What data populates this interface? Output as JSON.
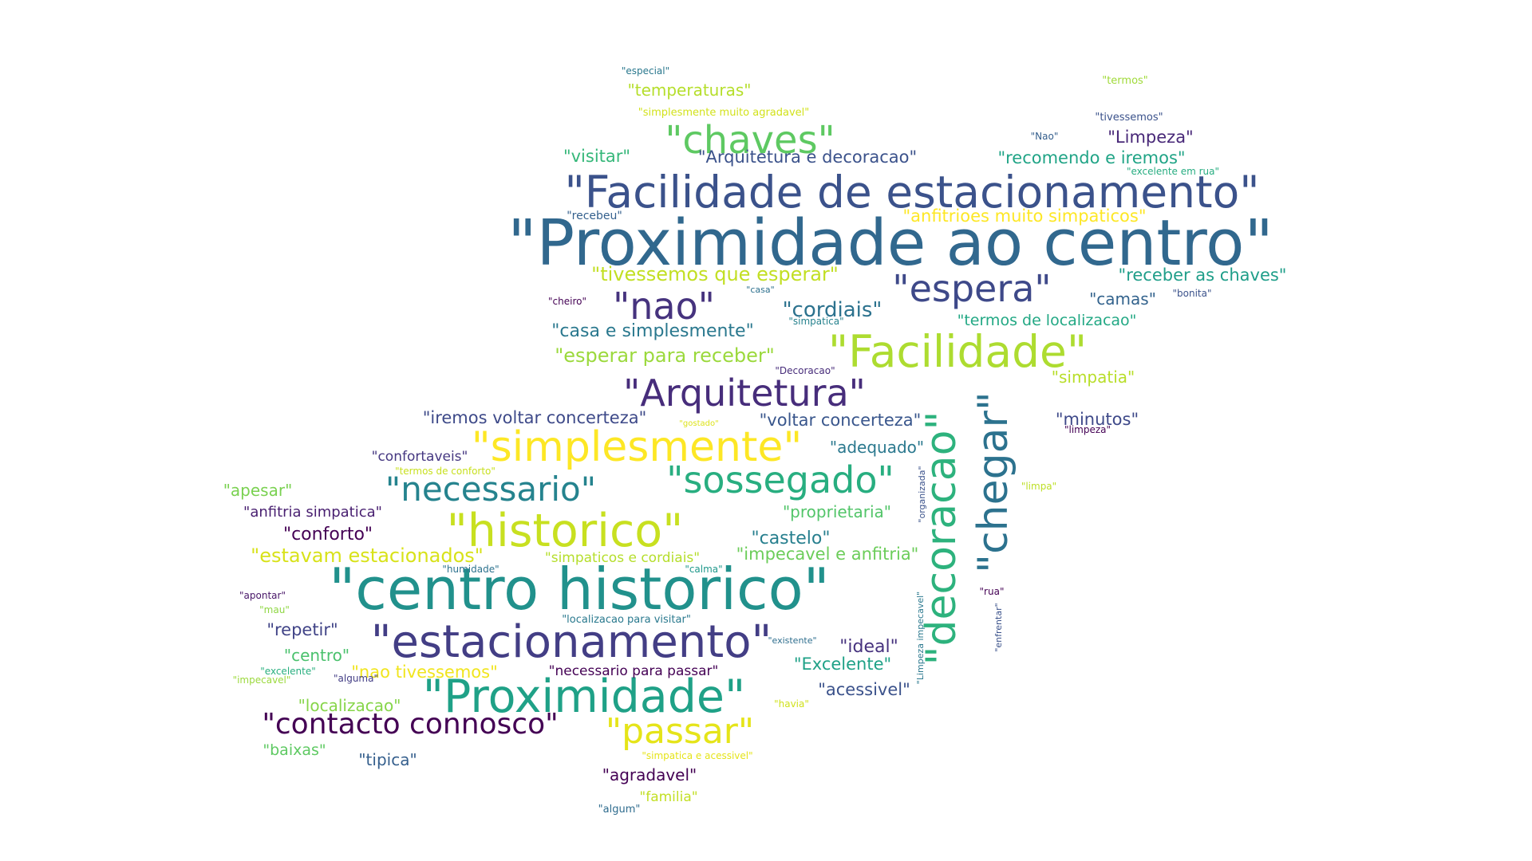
{
  "words": [
    {
      "text": "\"Proximidade ao centro\"",
      "color": "#31688e"
    },
    {
      "text": "\"centro historico\"",
      "color": "#21918c"
    },
    {
      "text": "\"Facilidade de estacionamento\"",
      "color": "#3b528b"
    },
    {
      "text": "\"historico\"",
      "color": "#c8e020"
    },
    {
      "text": "\"estacionamento\"",
      "color": "#433e85"
    },
    {
      "text": "\"Proximidade\"",
      "color": "#1fa187"
    },
    {
      "text": "\"Facilidade\"",
      "color": "#addc30"
    },
    {
      "text": "\"decoracao\"",
      "color": "#2db27d"
    },
    {
      "text": "\"chegar\"",
      "color": "#2c728e"
    },
    {
      "text": "\"simplesmente\"",
      "color": "#fde725"
    },
    {
      "text": "\"chaves\"",
      "color": "#5ec962"
    },
    {
      "text": "\"espera\"",
      "color": "#3e4989"
    },
    {
      "text": "\"sossegado\"",
      "color": "#28ae80"
    },
    {
      "text": "\"Arquitetura\"",
      "color": "#472d7b"
    },
    {
      "text": "\"nao\"",
      "color": "#46337e"
    },
    {
      "text": "\"necessario\"",
      "color": "#25838e"
    },
    {
      "text": "\"contacto connosco\"",
      "color": "#440154"
    },
    {
      "text": "\"passar\"",
      "color": "#e5e419"
    },
    {
      "text": "\"cordiais\"",
      "color": "#2c728e"
    },
    {
      "text": "\"temperaturas\"",
      "color": "#b5de2b"
    },
    {
      "text": "\"visitar\"",
      "color": "#35b779"
    },
    {
      "text": "\"Arquitetura e decoracao\"",
      "color": "#3b528b"
    },
    {
      "text": "\"recomendo e iremos\"",
      "color": "#20a486"
    },
    {
      "text": "\"Limpeza\"",
      "color": "#482878"
    },
    {
      "text": "\"anfitrioes muito simpaticos\"",
      "color": "#fde725"
    },
    {
      "text": "\"tivessemos que esperar\"",
      "color": "#c2df23"
    },
    {
      "text": "\"receber as chaves\"",
      "color": "#1f9e89"
    },
    {
      "text": "\"camas\"",
      "color": "#33638d"
    },
    {
      "text": "\"casa e simplesmente\"",
      "color": "#2a788e"
    },
    {
      "text": "\"termos de localizacao\"",
      "color": "#22a884"
    },
    {
      "text": "\"esperar para receber\"",
      "color": "#9bd93c"
    },
    {
      "text": "\"simpatia\"",
      "color": "#b8de29"
    },
    {
      "text": "\"iremos voltar concerteza\"",
      "color": "#3e4a89"
    },
    {
      "text": "\"voltar concerteza\"",
      "color": "#39568c"
    },
    {
      "text": "\"minutos\"",
      "color": "#3e4989"
    },
    {
      "text": "\"adequado\"",
      "color": "#2a788e"
    },
    {
      "text": "\"confortaveis\"",
      "color": "#453781"
    },
    {
      "text": "\"apesar\"",
      "color": "#7ad151"
    },
    {
      "text": "\"anfitria simpatica\"",
      "color": "#481f70"
    },
    {
      "text": "\"proprietaria\"",
      "color": "#52c569"
    },
    {
      "text": "\"conforto\"",
      "color": "#440154"
    },
    {
      "text": "\"castelo\"",
      "color": "#277f8e"
    },
    {
      "text": "\"estavam estacionados\"",
      "color": "#d8e219"
    },
    {
      "text": "\"impecavel e anfitria\"",
      "color": "#6ccd5a"
    },
    {
      "text": "\"simpaticos e cordiais\"",
      "color": "#b5de2b"
    },
    {
      "text": "\"repetir\"",
      "color": "#414487"
    },
    {
      "text": "\"ideal\"",
      "color": "#46327e"
    },
    {
      "text": "\"centro\"",
      "color": "#4ac16d"
    },
    {
      "text": "\"Excelente\"",
      "color": "#1fa187"
    },
    {
      "text": "\"nao tivessemos\"",
      "color": "#f1e51d"
    },
    {
      "text": "\"necessario para passar\"",
      "color": "#440154"
    },
    {
      "text": "\"acessivel\"",
      "color": "#3b528b"
    },
    {
      "text": "\"localizacao\"",
      "color": "#86d549"
    },
    {
      "text": "\"baixas\"",
      "color": "#5ec962"
    },
    {
      "text": "\"tipica\"",
      "color": "#355f8d"
    },
    {
      "text": "\"agradavel\"",
      "color": "#440154"
    },
    {
      "text": "\"familia\"",
      "color": "#c2df23"
    },
    {
      "text": "\"especial\"",
      "color": "#2a788e"
    },
    {
      "text": "\"simplesmente muito agradavel\"",
      "color": "#d2e21b"
    },
    {
      "text": "\"termos\"",
      "color": "#a0da39"
    },
    {
      "text": "\"tivessemos\"",
      "color": "#3b528b"
    },
    {
      "text": "\"Nao\"",
      "color": "#355f8d"
    },
    {
      "text": "\"excelente em rua\"",
      "color": "#27ad81"
    },
    {
      "text": "\"recebeu\"",
      "color": "#34608d"
    },
    {
      "text": "\"casa\"",
      "color": "#2d708e"
    },
    {
      "text": "\"cheiro\"",
      "color": "#440154"
    },
    {
      "text": "\"bonita\"",
      "color": "#3b528b"
    },
    {
      "text": "\"simpatica\"",
      "color": "#26828e"
    },
    {
      "text": "\"Decoracao\"",
      "color": "#472c7a"
    },
    {
      "text": "\"gostado\"",
      "color": "#dde318"
    },
    {
      "text": "\"limpeza\"",
      "color": "#440154"
    },
    {
      "text": "\"termos de conforto\"",
      "color": "#c8e020"
    },
    {
      "text": "\"organizada\"",
      "color": "#3b528b"
    },
    {
      "text": "\"limpa\"",
      "color": "#bddf26"
    },
    {
      "text": "\"humidade\"",
      "color": "#2c728e"
    },
    {
      "text": "\"calma\"",
      "color": "#1f988b"
    },
    {
      "text": "\"apontar\"",
      "color": "#481668"
    },
    {
      "text": "\"rua\"",
      "color": "#440154"
    },
    {
      "text": "\"mau\"",
      "color": "#8fd744"
    },
    {
      "text": "\"localizacao para visitar\"",
      "color": "#29798e"
    },
    {
      "text": "\"existente\"",
      "color": "#2e6e8e"
    },
    {
      "text": "\"enfrentar\"",
      "color": "#3b528b"
    },
    {
      "text": "\"Limpeza impecavel\"",
      "color": "#2a788e"
    },
    {
      "text": "\"excelente\"",
      "color": "#29af7f"
    },
    {
      "text": "\"alguma\"",
      "color": "#433e85"
    },
    {
      "text": "\"impecavel\"",
      "color": "#9bd93c"
    },
    {
      "text": "\"havia\"",
      "color": "#d0e11c"
    },
    {
      "text": "\"simpatica e acessivel\"",
      "color": "#e5e419"
    },
    {
      "text": "\"algum\"",
      "color": "#2f6c8e"
    }
  ]
}
